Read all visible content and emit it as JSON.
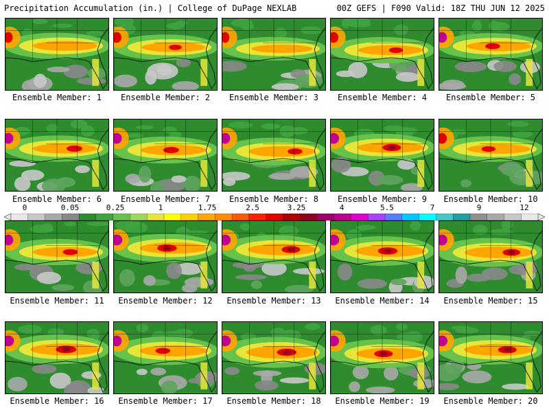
{
  "header": {
    "left": "Precipitation Accumulation (in.) | College of DuPage NEXLAB",
    "right": "00Z GEFS | F090 Valid: 18Z THU JUN 12 2025"
  },
  "members": [
    {
      "label": "Ensemble Member: 1",
      "intensity": 0.55,
      "hot": 0.15,
      "max_cat": "2.5"
    },
    {
      "label": "Ensemble Member: 2",
      "intensity": 0.5,
      "hot": 0.25,
      "max_cat": "3.25"
    },
    {
      "label": "Ensemble Member: 3",
      "intensity": 0.35,
      "hot": 0.05,
      "max_cat": "1.75"
    },
    {
      "label": "Ensemble Member: 4",
      "intensity": 0.55,
      "hot": 0.3,
      "max_cat": "4"
    },
    {
      "label": "Ensemble Member: 5",
      "intensity": 0.55,
      "hot": 0.35,
      "max_cat": "5.5"
    },
    {
      "label": "Ensemble Member: 6",
      "intensity": 0.55,
      "hot": 0.4,
      "max_cat": "7"
    },
    {
      "label": "Ensemble Member: 7",
      "intensity": 0.6,
      "hot": 0.4,
      "max_cat": "5.5"
    },
    {
      "label": "Ensemble Member: 8",
      "intensity": 0.65,
      "hot": 0.35,
      "max_cat": "3.25"
    },
    {
      "label": "Ensemble Member: 9",
      "intensity": 0.65,
      "hot": 0.55,
      "max_cat": "4"
    },
    {
      "label": "Ensemble Member: 10",
      "intensity": 0.5,
      "hot": 0.3,
      "max_cat": "4"
    },
    {
      "label": "Ensemble Member: 11",
      "intensity": 0.55,
      "hot": 0.35,
      "max_cat": "7"
    },
    {
      "label": "Ensemble Member: 12",
      "intensity": 0.7,
      "hot": 0.6,
      "max_cat": "4"
    },
    {
      "label": "Ensemble Member: 13",
      "intensity": 0.75,
      "hot": 0.55,
      "max_cat": "4"
    },
    {
      "label": "Ensemble Member: 14",
      "intensity": 0.8,
      "hot": 0.6,
      "max_cat": "4"
    },
    {
      "label": "Ensemble Member: 15",
      "intensity": 0.75,
      "hot": 0.5,
      "max_cat": "3.25"
    },
    {
      "label": "Ensemble Member: 16",
      "intensity": 0.8,
      "hot": 0.65,
      "max_cat": "5.5"
    },
    {
      "label": "Ensemble Member: 17",
      "intensity": 0.7,
      "hot": 0.35,
      "max_cat": "3.25"
    },
    {
      "label": "Ensemble Member: 18",
      "intensity": 0.9,
      "hot": 0.6,
      "max_cat": "3.25"
    },
    {
      "label": "Ensemble Member: 19",
      "intensity": 0.75,
      "hot": 0.55,
      "max_cat": "5.5"
    },
    {
      "label": "Ensemble Member: 20",
      "intensity": 0.8,
      "hot": 0.55,
      "max_cat": "4"
    }
  ],
  "colorbar": {
    "labels": [
      "0",
      "0.05",
      "0.25",
      "1",
      "1.75",
      "2.5",
      "3.25",
      "4",
      "5.5",
      "7",
      "9",
      "12"
    ],
    "colors": [
      "#e8e8e8",
      "#c8c8c8",
      "#a8a8a8",
      "#888888",
      "#2e8b2e",
      "#3fa33f",
      "#66c24a",
      "#9ed65a",
      "#e6e63a",
      "#ffff00",
      "#ffd000",
      "#ffa500",
      "#ff8c00",
      "#ff5a00",
      "#ff2000",
      "#e00000",
      "#b00000",
      "#900020",
      "#a0006a",
      "#c00090",
      "#e000d0",
      "#b040ff",
      "#5a7aff",
      "#00c8ff",
      "#00ffff",
      "#40c8c8",
      "#20a0a0",
      "#909090",
      "#a8a8a8",
      "#c8c8c8",
      "#e8e8e8"
    ]
  }
}
